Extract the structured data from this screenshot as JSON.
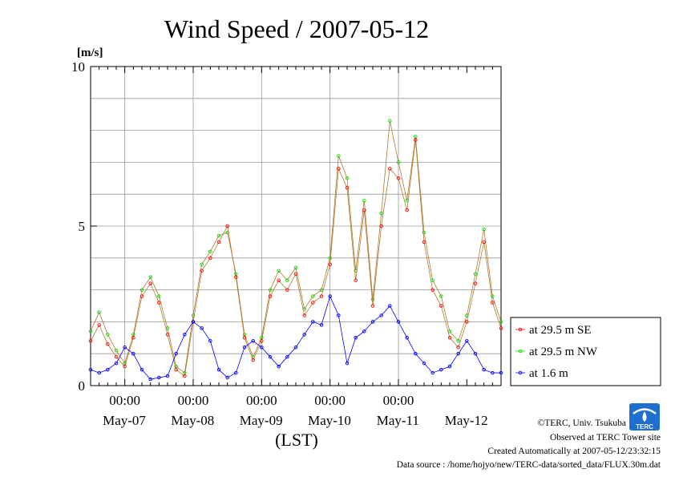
{
  "chart_data": {
    "type": "line",
    "title": "Wind Speed / 2007-05-12",
    "ylabel": "[m/s]",
    "xlabel": "(LST)",
    "ylim": [
      0,
      10
    ],
    "xlim": [
      "2007-05-06 12:00",
      "2007-05-12 12:00"
    ],
    "yticks": [
      "0",
      "5",
      "10"
    ],
    "xtick_time_label": "00:00",
    "date_labels": [
      "May-07",
      "May-08",
      "May-09",
      "May-10",
      "May-11",
      "May-12"
    ],
    "grid": true,
    "legend_position": "right",
    "x_hours_from_start": [
      0,
      3,
      6,
      9,
      12,
      15,
      18,
      21,
      24,
      27,
      30,
      33,
      36,
      39,
      42,
      45,
      48,
      51,
      54,
      57,
      60,
      63,
      66,
      69,
      72,
      75,
      78,
      81,
      84,
      87,
      90,
      93,
      96,
      99,
      102,
      105,
      108,
      111,
      114,
      117,
      120,
      123,
      126,
      129,
      132,
      135,
      138,
      141,
      144
    ],
    "series": [
      {
        "name": "at 29.5 m SE",
        "color": "#ff0000",
        "values": [
          1.4,
          1.9,
          1.3,
          0.9,
          0.6,
          1.5,
          2.8,
          3.2,
          2.6,
          1.6,
          0.5,
          0.3,
          2.0,
          3.6,
          4.0,
          4.5,
          5.0,
          3.4,
          1.5,
          0.8,
          1.4,
          2.8,
          3.3,
          3.0,
          3.5,
          2.2,
          2.6,
          2.8,
          3.8,
          6.8,
          6.2,
          3.3,
          5.5,
          2.5,
          5.0,
          6.8,
          6.5,
          5.5,
          7.7,
          4.5,
          3.0,
          2.5,
          1.5,
          1.2,
          2.0,
          3.2,
          4.5,
          2.6,
          1.8
        ]
      },
      {
        "name": "at 29.5 m NW",
        "color": "#00e000",
        "values": [
          1.7,
          2.3,
          1.6,
          1.1,
          0.7,
          1.6,
          3.0,
          3.4,
          2.8,
          1.8,
          0.6,
          0.4,
          2.2,
          3.8,
          4.2,
          4.7,
          4.8,
          3.5,
          1.6,
          0.9,
          1.5,
          3.0,
          3.6,
          3.3,
          3.7,
          2.4,
          2.8,
          3.0,
          4.0,
          7.2,
          6.5,
          3.6,
          5.8,
          2.7,
          5.4,
          8.3,
          7.0,
          5.8,
          7.8,
          4.8,
          3.3,
          2.8,
          1.7,
          1.4,
          2.2,
          3.5,
          4.9,
          2.8,
          2.0
        ]
      },
      {
        "name": "at 1.6 m",
        "color": "#0000ff",
        "values": [
          0.5,
          0.4,
          0.5,
          0.7,
          1.2,
          1.0,
          0.5,
          0.2,
          0.25,
          0.3,
          1.0,
          1.6,
          2.0,
          1.8,
          1.4,
          0.5,
          0.25,
          0.4,
          1.2,
          1.4,
          1.2,
          0.9,
          0.6,
          0.9,
          1.2,
          1.6,
          2.0,
          1.9,
          2.8,
          2.2,
          0.7,
          1.5,
          1.7,
          2.0,
          2.2,
          2.5,
          2.0,
          1.5,
          1.0,
          0.7,
          0.4,
          0.5,
          0.6,
          1.0,
          1.4,
          1.0,
          0.5,
          0.4,
          0.4
        ]
      }
    ]
  },
  "credits": {
    "copyright": "©TERC, Univ. Tsukuba",
    "observed": "Observed at TERC Tower site",
    "created": "Created Automatically at 2007-05-12/23:32:15",
    "source": "Data source : /home/hojyo/new/TERC-data/sorted_data/FLUX.30m.dat",
    "logo_text": "TERC"
  }
}
